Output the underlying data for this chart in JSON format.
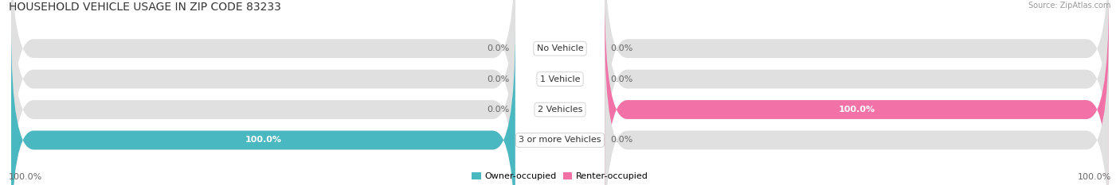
{
  "title": "HOUSEHOLD VEHICLE USAGE IN ZIP CODE 83233",
  "source": "Source: ZipAtlas.com",
  "categories": [
    "No Vehicle",
    "1 Vehicle",
    "2 Vehicles",
    "3 or more Vehicles"
  ],
  "owner_values": [
    0.0,
    0.0,
    0.0,
    100.0
  ],
  "renter_values": [
    0.0,
    0.0,
    100.0,
    0.0
  ],
  "owner_color": "#4ab8c1",
  "renter_color": "#f272a8",
  "renter_color_light": "#f7b8d1",
  "owner_label": "Owner-occupied",
  "renter_label": "Renter-occupied",
  "bg_color_odd": "#f5f5f5",
  "bg_color_even": "#ececec",
  "bar_bg_color": "#e0e0e0",
  "title_fontsize": 10,
  "label_fontsize": 8,
  "category_fontsize": 8,
  "figsize": [
    14.06,
    2.33
  ],
  "dpi": 100
}
